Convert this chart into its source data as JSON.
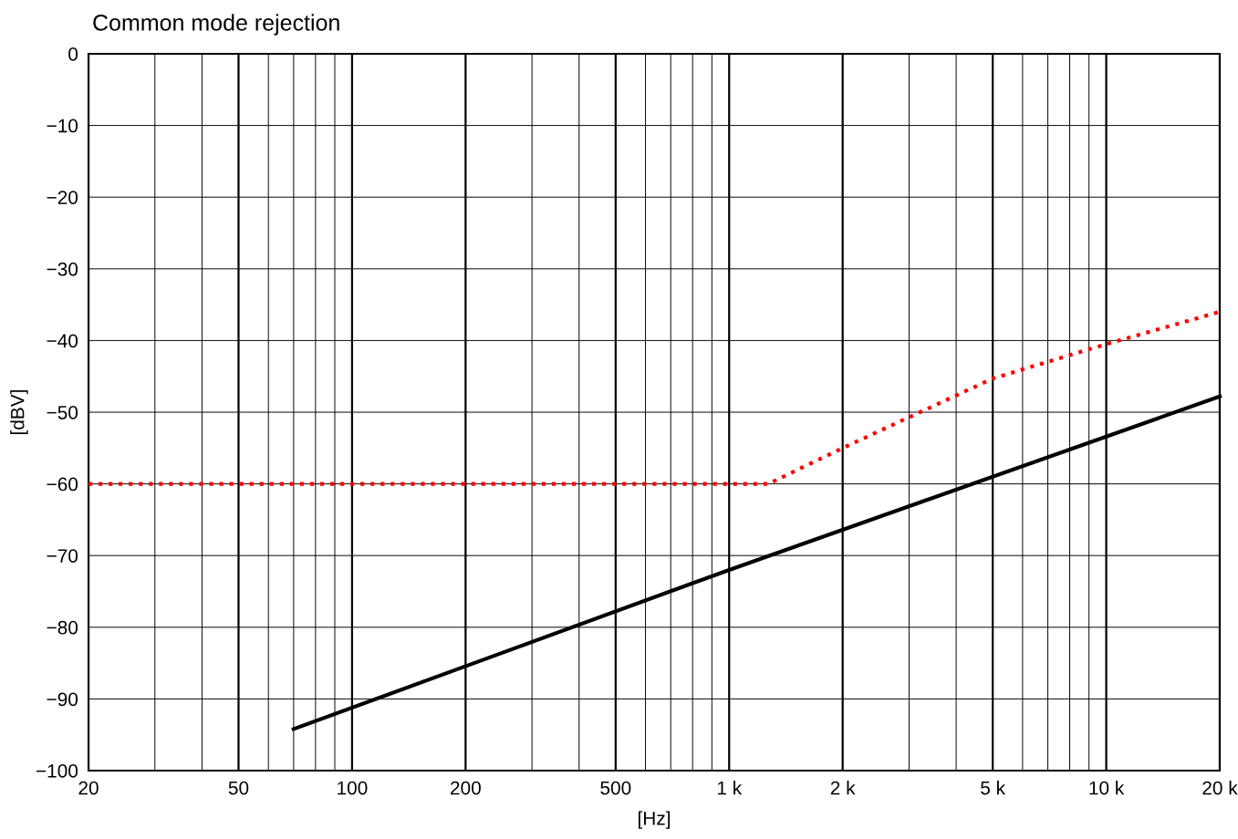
{
  "chart_data": {
    "type": "line",
    "title": "Common mode rejection",
    "xlabel": "[Hz]",
    "ylabel": "[dBV]",
    "log": "x",
    "grid": true,
    "xlim": [
      20,
      20000
    ],
    "ylim": [
      -100,
      0
    ],
    "xticks": [
      20,
      {
        "value": 30,
        "label": null
      },
      {
        "value": 40,
        "label": null
      },
      50,
      {
        "value": 60,
        "label": null
      },
      {
        "value": 70,
        "label": null
      },
      {
        "value": 80,
        "label": null
      },
      {
        "value": 90,
        "label": null
      },
      100,
      200,
      {
        "value": 300,
        "label": null
      },
      {
        "value": 400,
        "label": null
      },
      500,
      {
        "value": 600,
        "label": null
      },
      {
        "value": 700,
        "label": null
      },
      {
        "value": 800,
        "label": null
      },
      {
        "value": 900,
        "label": null
      },
      {
        "value": 1000,
        "label": "1 k"
      },
      {
        "value": 2000,
        "label": "2 k"
      },
      {
        "value": 3000,
        "label": null
      },
      {
        "value": 4000,
        "label": null
      },
      {
        "value": 5000,
        "label": "5 k"
      },
      {
        "value": 6000,
        "label": null
      },
      {
        "value": 7000,
        "label": null
      },
      {
        "value": 8000,
        "label": null
      },
      {
        "value": 9000,
        "label": null
      },
      {
        "value": 10000,
        "label": "10 k"
      },
      {
        "value": 20000,
        "label": "20 k"
      }
    ],
    "yticks": [
      {
        "value": 0,
        "label": "0"
      },
      {
        "value": -10,
        "label": "−10"
      },
      {
        "value": -20,
        "label": "−20"
      },
      {
        "value": -30,
        "label": "−30"
      },
      {
        "value": -40,
        "label": "−40"
      },
      {
        "value": -50,
        "label": "−50"
      },
      {
        "value": -60,
        "label": "−60"
      },
      {
        "value": -70,
        "label": "−70"
      },
      {
        "value": -80,
        "label": "−80"
      },
      {
        "value": -90,
        "label": "−90"
      },
      {
        "value": -100,
        "label": "−100"
      }
    ],
    "series": [
      {
        "color": "#000000",
        "line_style": "solid",
        "x": [
          70,
          1000,
          20000
        ],
        "values": [
          -94.2,
          -72,
          -47.8
        ]
      },
      {
        "color": "#ff0000",
        "line_style": "dotted",
        "x": [
          20,
          1270,
          2000,
          5000,
          10000,
          20000
        ],
        "values": [
          -60,
          -60,
          -55,
          -45.3,
          -40.5,
          -36
        ]
      }
    ]
  }
}
